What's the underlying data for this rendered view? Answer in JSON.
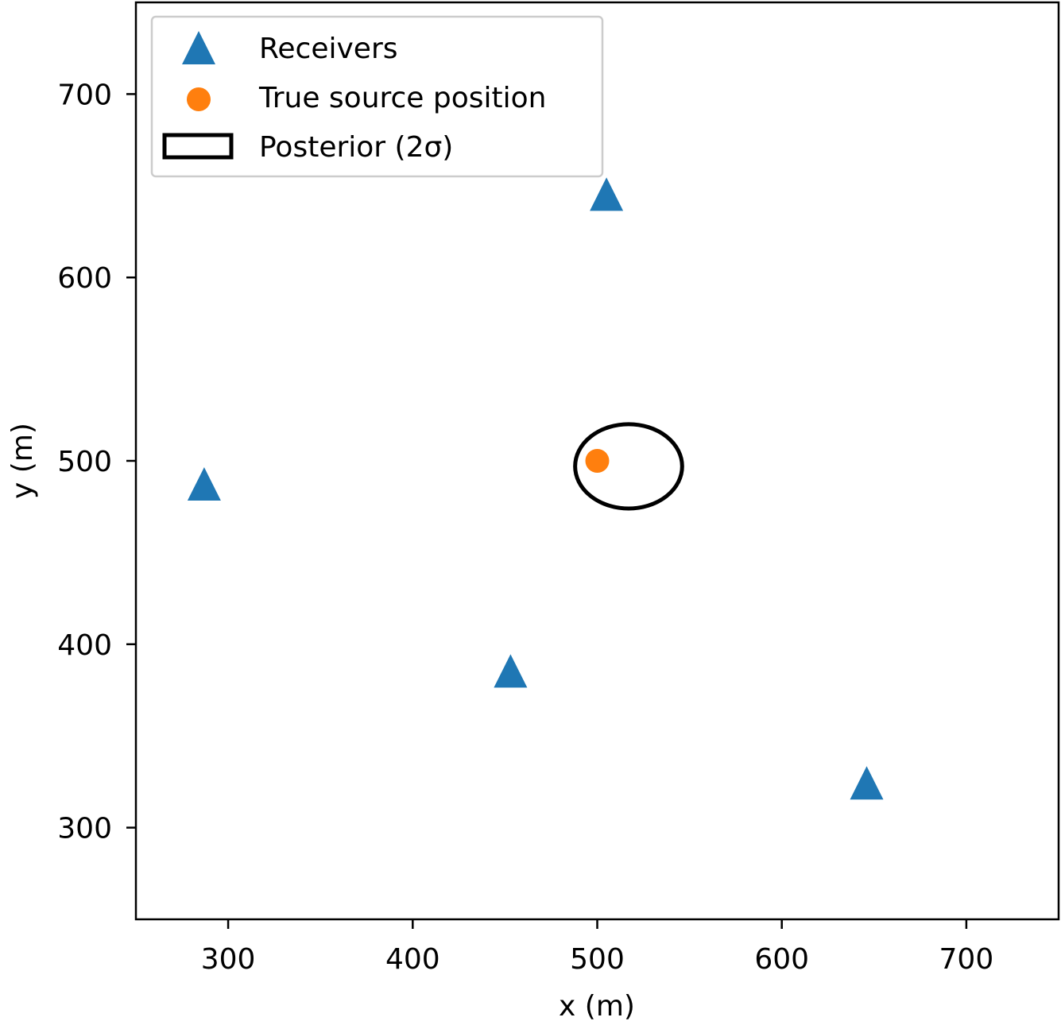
{
  "chart_data": {
    "type": "scatter",
    "xlabel": "x (m)",
    "ylabel": "y (m)",
    "xlim": [
      250,
      750
    ],
    "ylim": [
      250,
      750
    ],
    "xticks": [
      300,
      400,
      500,
      600,
      700
    ],
    "yticks": [
      300,
      400,
      500,
      600,
      700
    ],
    "grid": false,
    "legend_position": "top-left",
    "series": [
      {
        "name": "Receivers",
        "marker": "triangle",
        "color": "#1f77b4",
        "points": [
          {
            "x": 505,
            "y": 645
          },
          {
            "x": 287,
            "y": 487
          },
          {
            "x": 453,
            "y": 385
          },
          {
            "x": 646,
            "y": 324
          }
        ]
      },
      {
        "name": "True source position",
        "marker": "circle",
        "color": "#ff7f0e",
        "points": [
          {
            "x": 500,
            "y": 500
          }
        ]
      },
      {
        "name": "Posterior (2σ)",
        "marker": "ellipse",
        "color": "#000000",
        "ellipse": {
          "cx": 517,
          "cy": 497,
          "width": 58,
          "height": 46
        }
      }
    ]
  }
}
